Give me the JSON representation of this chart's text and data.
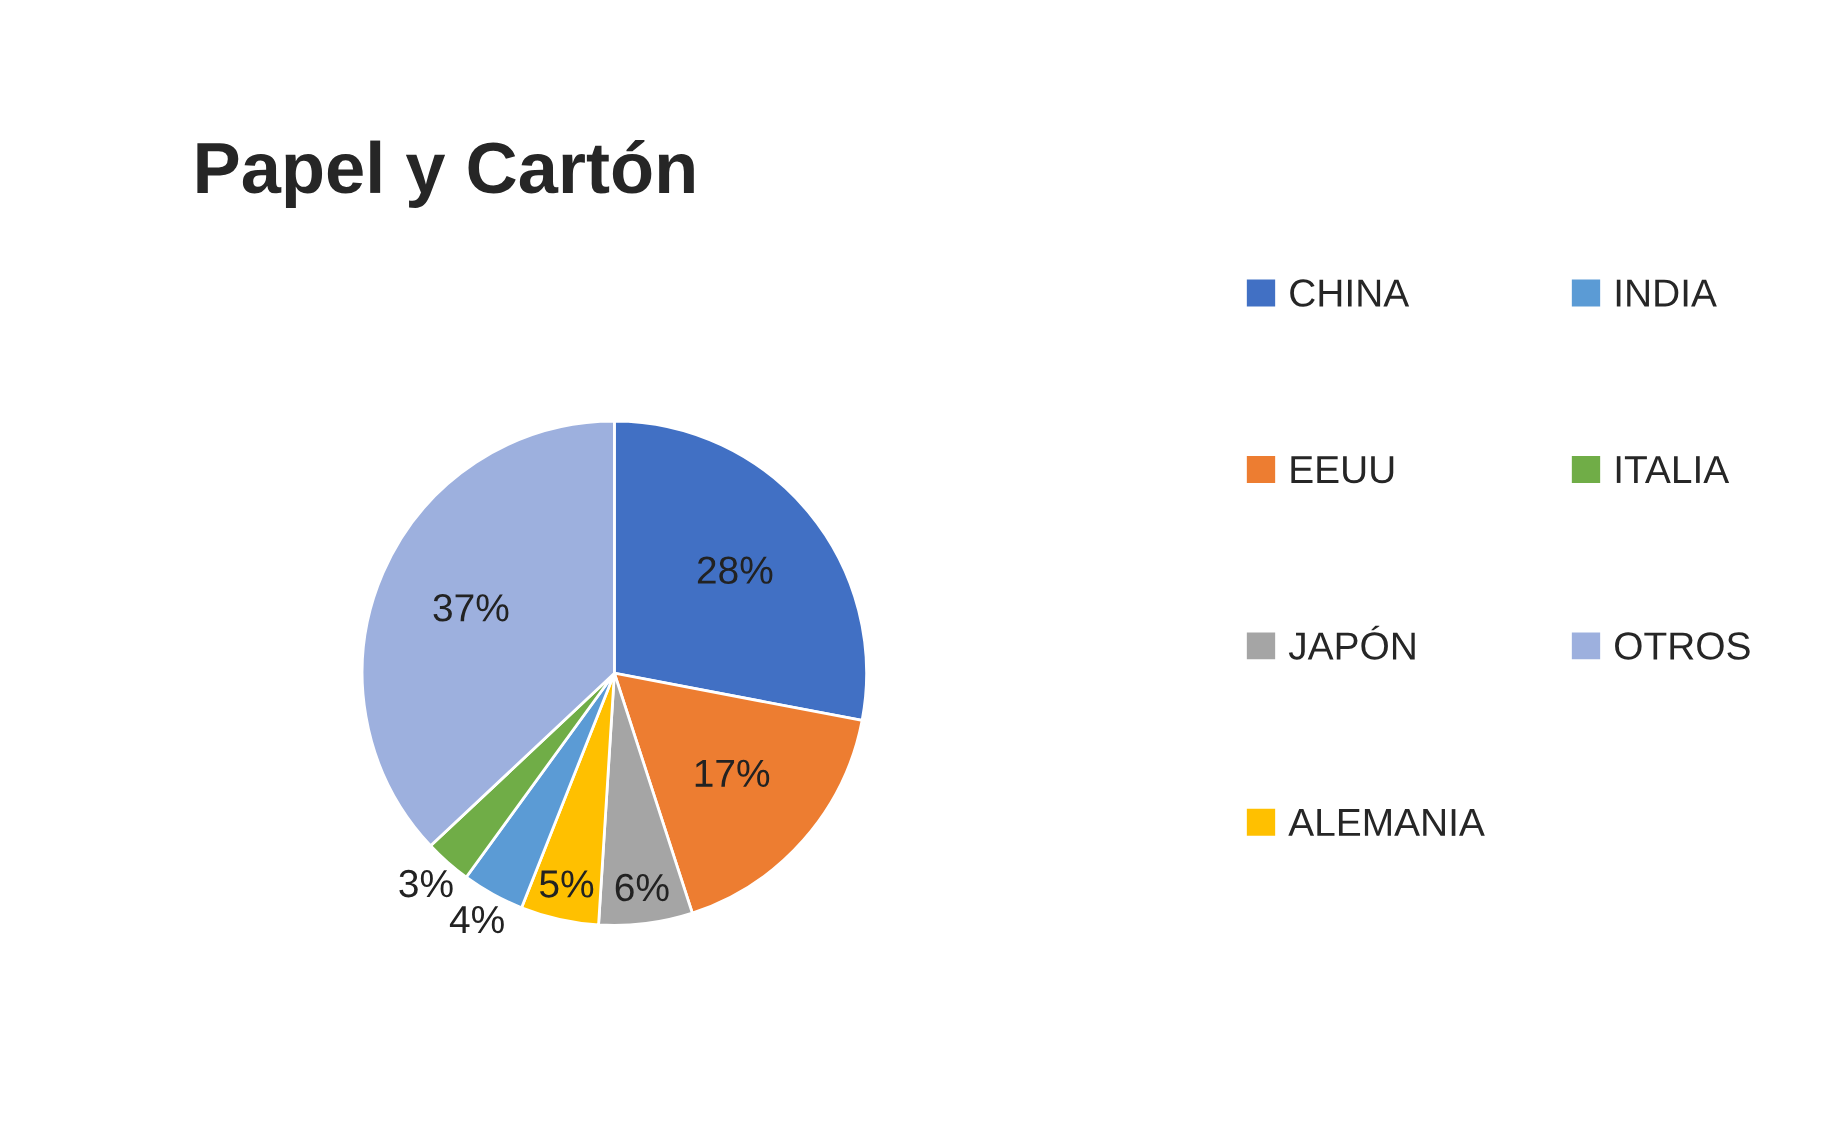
{
  "chart_data": {
    "type": "pie",
    "title": "Papel y Cartón",
    "categories": [
      "CHINA",
      "EEUU",
      "JAPÓN",
      "ALEMANIA",
      "INDIA",
      "ITALIA",
      "OTROS"
    ],
    "values": [
      28,
      17,
      6,
      5,
      4,
      3,
      37
    ],
    "value_labels": [
      "28%",
      "17%",
      "6%",
      "5%",
      "4%",
      "3%",
      "37%"
    ],
    "colors": [
      "#4170c4",
      "#ed7d31",
      "#a5a5a5",
      "#ffc000",
      "#5b9bd5",
      "#70ad47",
      "#9db0de"
    ],
    "legend": "right"
  }
}
